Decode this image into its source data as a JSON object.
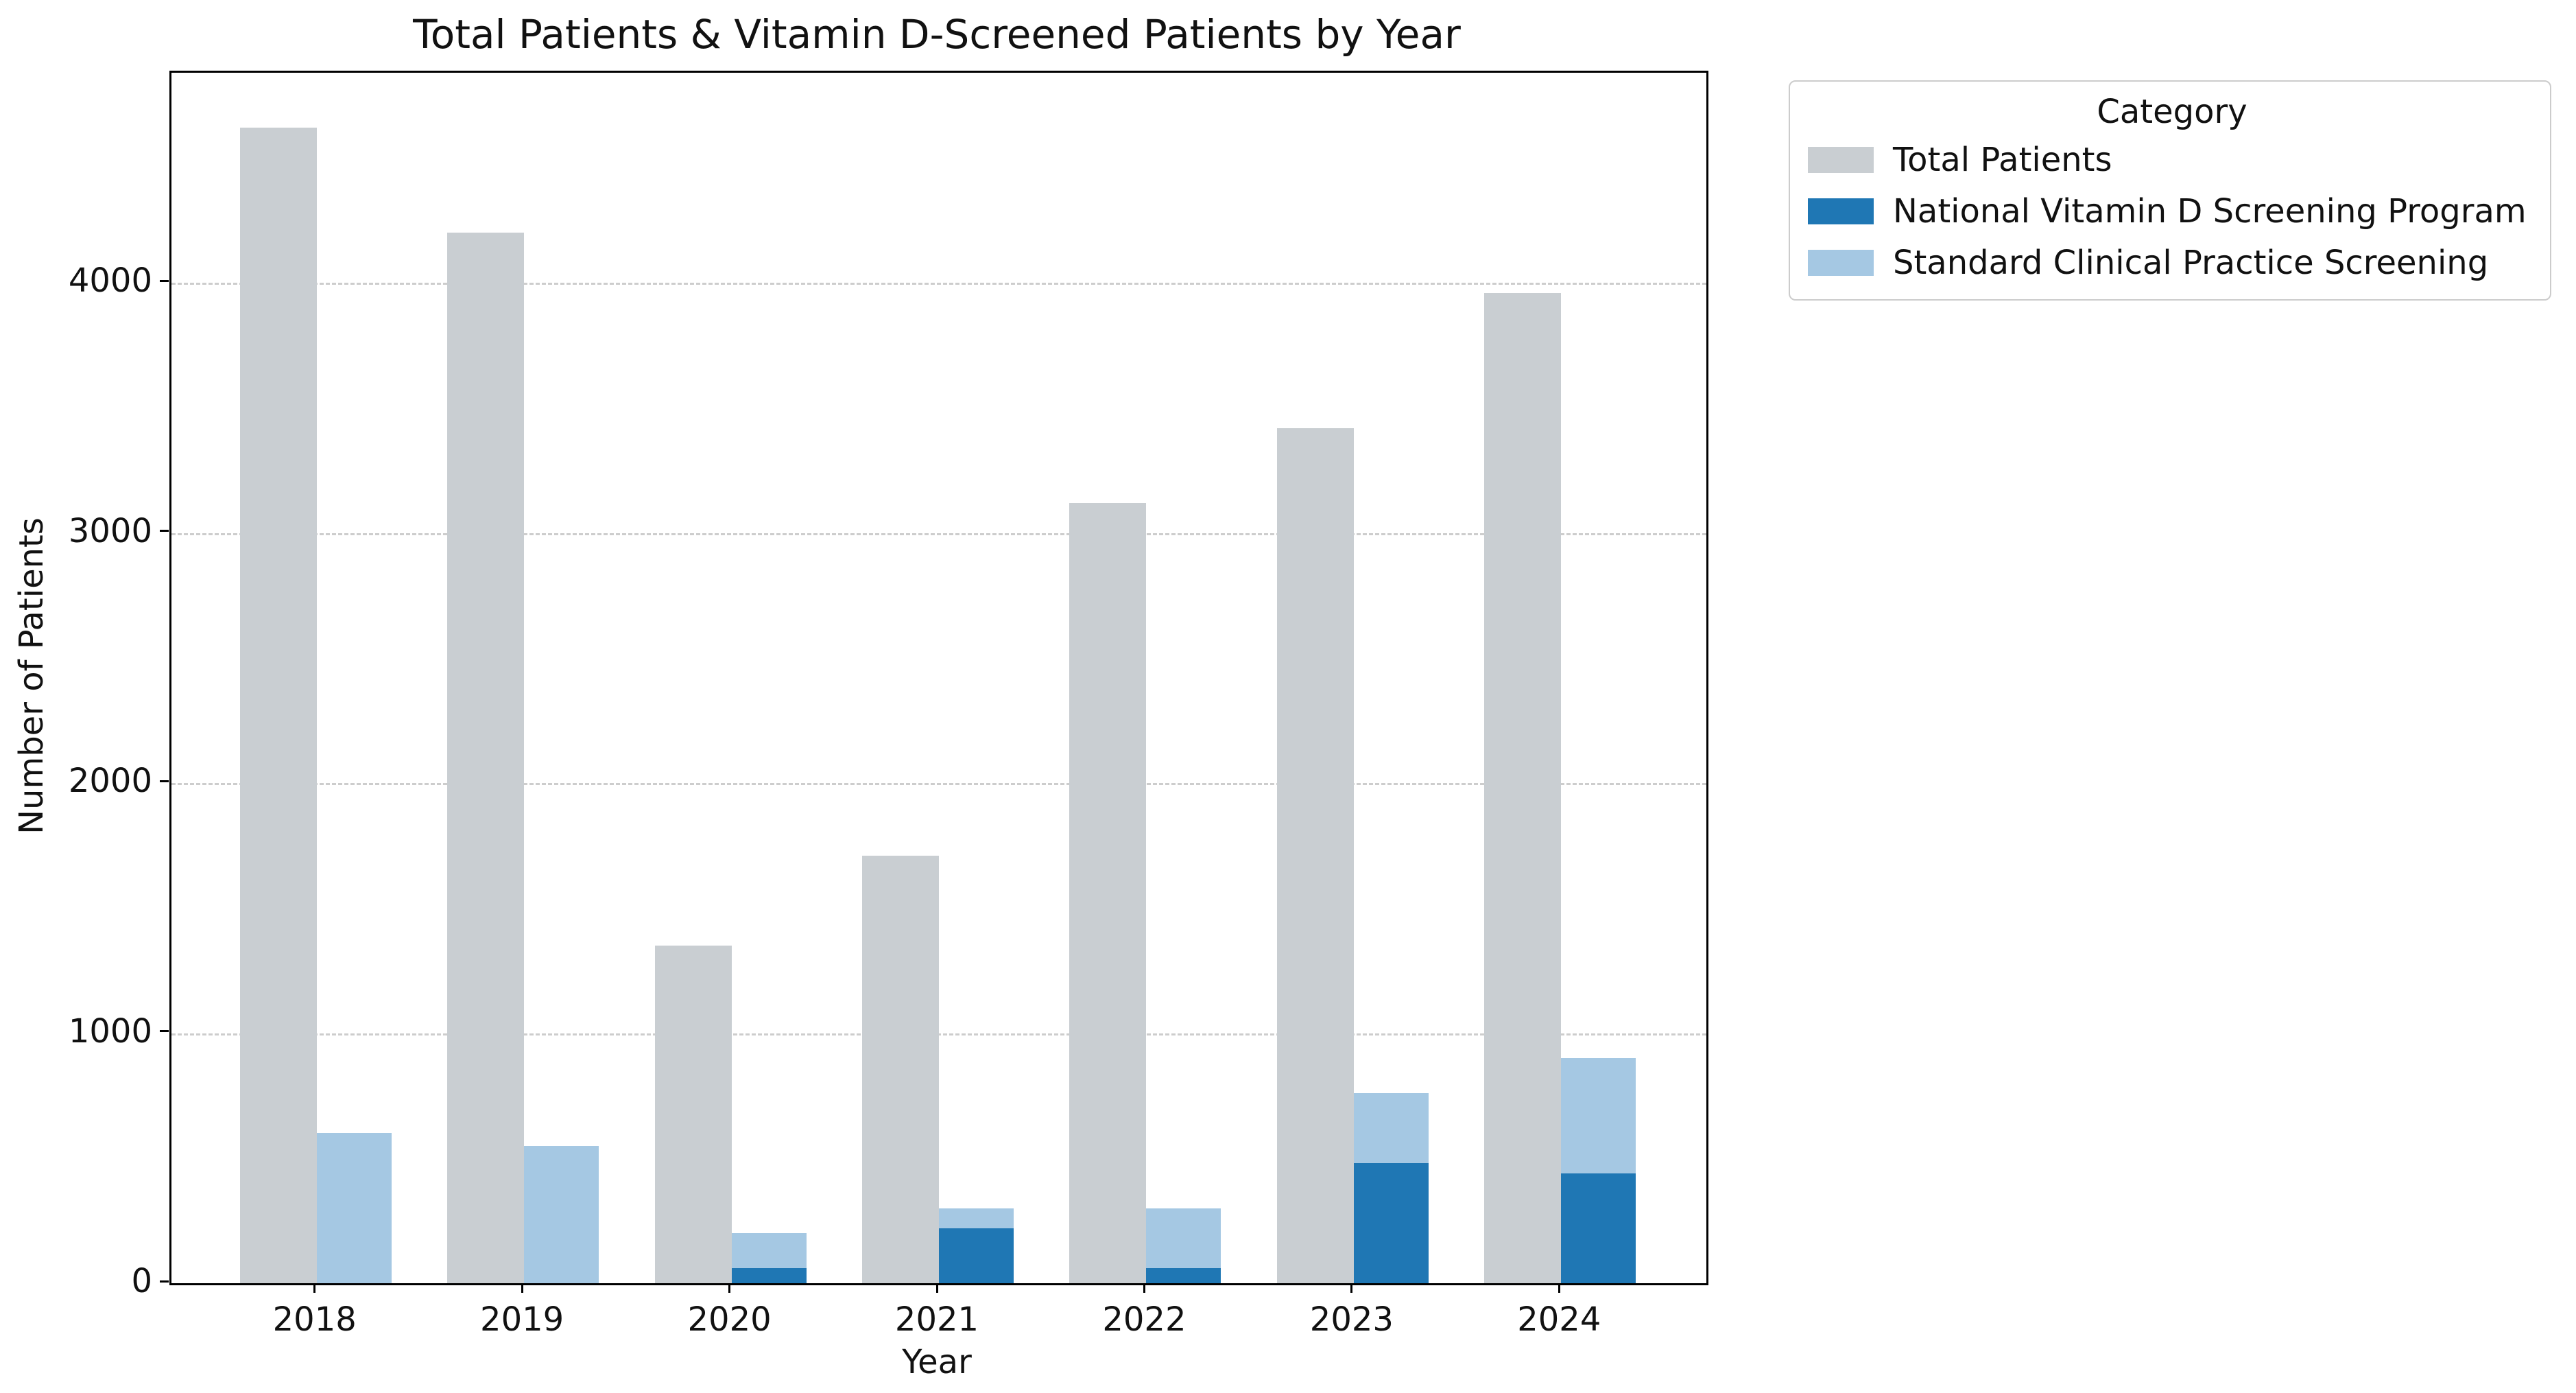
{
  "title": "Total Patients & Vitamin D-Screened Patients by Year",
  "axis_labels": {
    "x": "Year",
    "y": "Number of Patients"
  },
  "axes": {
    "y_ticks": [
      0,
      1000,
      2000,
      3000,
      4000
    ],
    "x_categories": [
      "2018",
      "2019",
      "2020",
      "2021",
      "2022",
      "2023",
      "2024"
    ]
  },
  "legend": {
    "title": "Category",
    "entries": [
      {
        "label": "Total Patients",
        "color": "#c9ced2"
      },
      {
        "label": "National Vitamin D Screening Program",
        "color": "#1f77b4"
      },
      {
        "label": "Standard Clinical Practice Screening",
        "color": "#a5c8e3"
      }
    ]
  },
  "colors": {
    "total_bar": "#c9ced2",
    "national_bar": "#1f77b4",
    "standard_bar": "#a5c8e3",
    "grid": "#cdcdcd",
    "spine": "#000000",
    "background": "#ffffff"
  },
  "chart_data": {
    "type": "bar",
    "title": "Total Patients & Vitamin D-Screened Patients by Year",
    "xlabel": "Year",
    "ylabel": "Number of Patients",
    "categories": [
      "2018",
      "2019",
      "2020",
      "2021",
      "2022",
      "2023",
      "2024"
    ],
    "series": [
      {
        "name": "Total Patients",
        "color": "#c9ced2",
        "values": [
          4620,
          4200,
          1350,
          1710,
          3120,
          3420,
          3960
        ]
      },
      {
        "name": "National Vitamin D Screening Program",
        "color": "#1f77b4",
        "values": [
          0,
          0,
          60,
          220,
          60,
          480,
          440
        ]
      },
      {
        "name": "Standard Clinical Practice Screening",
        "color": "#a5c8e3",
        "values": [
          600,
          550,
          200,
          300,
          300,
          760,
          900
        ]
      }
    ],
    "series_layout": "Total Patients bar on left half of each group; screened bar on right half with Standard Clinical Practice Screening as full light-blue height and National Vitamin D Screening Program overlaid from baseline in front",
    "ylim": [
      0,
      4840
    ],
    "y_ticks": [
      0,
      1000,
      2000,
      3000,
      4000
    ],
    "grid": "horizontal dashed",
    "legend_position": "outside upper right"
  }
}
